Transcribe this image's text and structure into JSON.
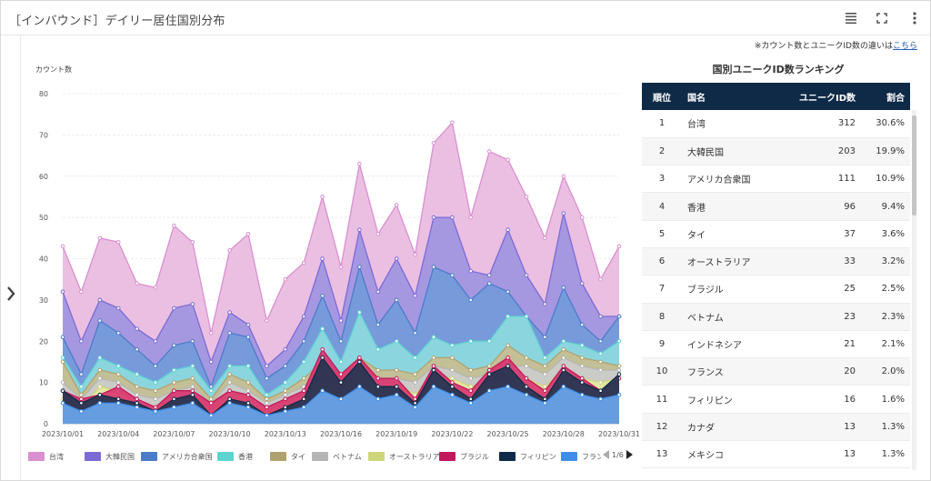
{
  "header": {
    "title": "［インバウンド］デイリー居住国別分布",
    "icons": [
      "menu-icon",
      "fullscreen-icon",
      "more-vertical-icon"
    ]
  },
  "note": {
    "text": "※カウント数とユニークID数の違いは",
    "link_label": "こちら"
  },
  "chart_data": {
    "type": "area",
    "stacked": false,
    "ylabel": "カウント数",
    "ylim": [
      0,
      80
    ],
    "yticks": [
      0,
      10,
      20,
      30,
      40,
      50,
      60,
      70,
      80
    ],
    "grid": true,
    "legend_position": "bottom",
    "xtick_labels": [
      "2023/10/01",
      "2023/10/04",
      "2023/10/07",
      "2023/10/10",
      "2023/10/13",
      "2023/10/16",
      "2023/10/19",
      "2023/10/22",
      "2023/10/25",
      "2023/10/28",
      "2023/10/31"
    ],
    "x": [
      "2023/10/01",
      "2023/10/02",
      "2023/10/03",
      "2023/10/04",
      "2023/10/05",
      "2023/10/06",
      "2023/10/07",
      "2023/10/08",
      "2023/10/09",
      "2023/10/10",
      "2023/10/11",
      "2023/10/12",
      "2023/10/13",
      "2023/10/14",
      "2023/10/15",
      "2023/10/16",
      "2023/10/17",
      "2023/10/18",
      "2023/10/19",
      "2023/10/20",
      "2023/10/21",
      "2023/10/22",
      "2023/10/23",
      "2023/10/24",
      "2023/10/25",
      "2023/10/26",
      "2023/10/27",
      "2023/10/28",
      "2023/10/29",
      "2023/10/30",
      "2023/10/31"
    ],
    "series": [
      {
        "name": "台湾",
        "color": "#e8b4dc",
        "line": "#d98fd0",
        "values": [
          43,
          32,
          45,
          44,
          34,
          33,
          48,
          44,
          22,
          42,
          46,
          25,
          35,
          39,
          55,
          38,
          63,
          46,
          53,
          41,
          68,
          73,
          50,
          66,
          64,
          55,
          45,
          60,
          50,
          35,
          43
        ]
      },
      {
        "name": "大韓民国",
        "color": "#9a8fe0",
        "line": "#7a6bd6",
        "values": [
          32,
          20,
          30,
          28,
          23,
          20,
          28,
          29,
          15,
          27,
          24,
          14,
          18,
          26,
          40,
          25,
          47,
          32,
          40,
          31,
          50,
          50,
          37,
          36,
          47,
          36,
          29,
          51,
          34,
          26,
          26
        ]
      },
      {
        "name": "アメリカ合衆国",
        "color": "#6f9ad9",
        "line": "#4b7cc9",
        "values": [
          21,
          12,
          25,
          22,
          18,
          14,
          19,
          20,
          9,
          22,
          21,
          11,
          14,
          20,
          31,
          20,
          38,
          24,
          30,
          22,
          38,
          36,
          30,
          34,
          32,
          26,
          21,
          33,
          24,
          20,
          26
        ]
      },
      {
        "name": "香港",
        "color": "#8ee0de",
        "line": "#5fd3d0",
        "values": [
          16,
          9,
          16,
          14,
          12,
          10,
          13,
          14,
          8,
          14,
          14,
          7,
          10,
          15,
          23,
          15,
          27,
          18,
          20,
          16,
          21,
          19,
          20,
          20,
          26,
          26,
          16,
          20,
          19,
          17,
          20
        ]
      },
      {
        "name": "タイ",
        "color": "#c9bc8e",
        "line": "#b0a26e",
        "values": [
          15,
          7,
          13,
          12,
          9,
          8,
          10,
          11,
          6,
          12,
          10,
          6,
          8,
          11,
          15,
          12,
          16,
          13,
          13,
          12,
          16,
          16,
          13,
          14,
          19,
          16,
          14,
          18,
          16,
          15,
          14
        ]
      },
      {
        "name": "ベトナム",
        "color": "#cccccc",
        "line": "#b5b5b5",
        "values": [
          10,
          6,
          11,
          10,
          7,
          6,
          8,
          9,
          5,
          10,
          8,
          5,
          7,
          9,
          13,
          10,
          14,
          11,
          11,
          10,
          14,
          13,
          11,
          12,
          14,
          14,
          12,
          16,
          14,
          13,
          13
        ]
      },
      {
        "name": "オーストラリア",
        "color": "#e6eaa0",
        "line": "#cfd67a",
        "values": [
          6,
          4,
          9,
          8,
          5,
          4,
          6,
          7,
          3,
          8,
          6,
          3,
          5,
          7,
          11,
          8,
          12,
          9,
          10,
          7,
          12,
          11,
          9,
          10,
          11,
          11,
          9,
          13,
          11,
          10,
          11
        ]
      },
      {
        "name": "ブラジル",
        "color": "#d9336e",
        "line": "#c2185b",
        "values": [
          8,
          6,
          7,
          9,
          6,
          4,
          8,
          8,
          5,
          8,
          7,
          4,
          6,
          8,
          18,
          12,
          16,
          11,
          11,
          6,
          14,
          10,
          8,
          13,
          16,
          11,
          8,
          14,
          11,
          8,
          11
        ]
      },
      {
        "name": "フィリピン",
        "color": "#1f3550",
        "line": "#0f2a47",
        "values": [
          8,
          5,
          7,
          6,
          5,
          3,
          6,
          7,
          2,
          6,
          5,
          2,
          4,
          6,
          16,
          10,
          15,
          9,
          9,
          5,
          13,
          9,
          6,
          12,
          14,
          9,
          6,
          13,
          10,
          8,
          12
        ]
      },
      {
        "name": "フランス",
        "color": "#6aa9ef",
        "line": "#3f8fe8",
        "values": [
          5,
          3,
          5,
          5,
          4,
          3,
          4,
          5,
          2,
          5,
          4,
          2,
          3,
          4,
          8,
          6,
          9,
          6,
          7,
          4,
          9,
          7,
          5,
          8,
          9,
          7,
          5,
          9,
          7,
          6,
          7
        ]
      }
    ]
  },
  "legend": {
    "items": [
      "台湾",
      "大韓民国",
      "アメリカ合衆国",
      "香港",
      "タイ",
      "ベトナム",
      "オーストラリア",
      "ブラジル",
      "フィリピン",
      "フランス"
    ],
    "page_label": "1/6"
  },
  "ranking": {
    "title": "国別ユニークID数ランキング",
    "columns": [
      "順位",
      "国名",
      "ユニークID数",
      "割合"
    ],
    "rows": [
      {
        "rank": "1",
        "name": "台湾",
        "count": "312",
        "pct": "30.6%"
      },
      {
        "rank": "2",
        "name": "大韓民国",
        "count": "203",
        "pct": "19.9%"
      },
      {
        "rank": "3",
        "name": "アメリカ合衆国",
        "count": "111",
        "pct": "10.9%"
      },
      {
        "rank": "4",
        "name": "香港",
        "count": "96",
        "pct": "9.4%"
      },
      {
        "rank": "5",
        "name": "タイ",
        "count": "37",
        "pct": "3.6%"
      },
      {
        "rank": "6",
        "name": "オーストラリア",
        "count": "33",
        "pct": "3.2%"
      },
      {
        "rank": "7",
        "name": "ブラジル",
        "count": "25",
        "pct": "2.5%"
      },
      {
        "rank": "8",
        "name": "ベトナム",
        "count": "23",
        "pct": "2.3%"
      },
      {
        "rank": "9",
        "name": "インドネシア",
        "count": "21",
        "pct": "2.1%"
      },
      {
        "rank": "10",
        "name": "フランス",
        "count": "20",
        "pct": "2.0%"
      },
      {
        "rank": "11",
        "name": "フィリピン",
        "count": "16",
        "pct": "1.6%"
      },
      {
        "rank": "12",
        "name": "カナダ",
        "count": "13",
        "pct": "1.3%"
      },
      {
        "rank": "13",
        "name": "メキシコ",
        "count": "13",
        "pct": "1.3%"
      }
    ]
  }
}
